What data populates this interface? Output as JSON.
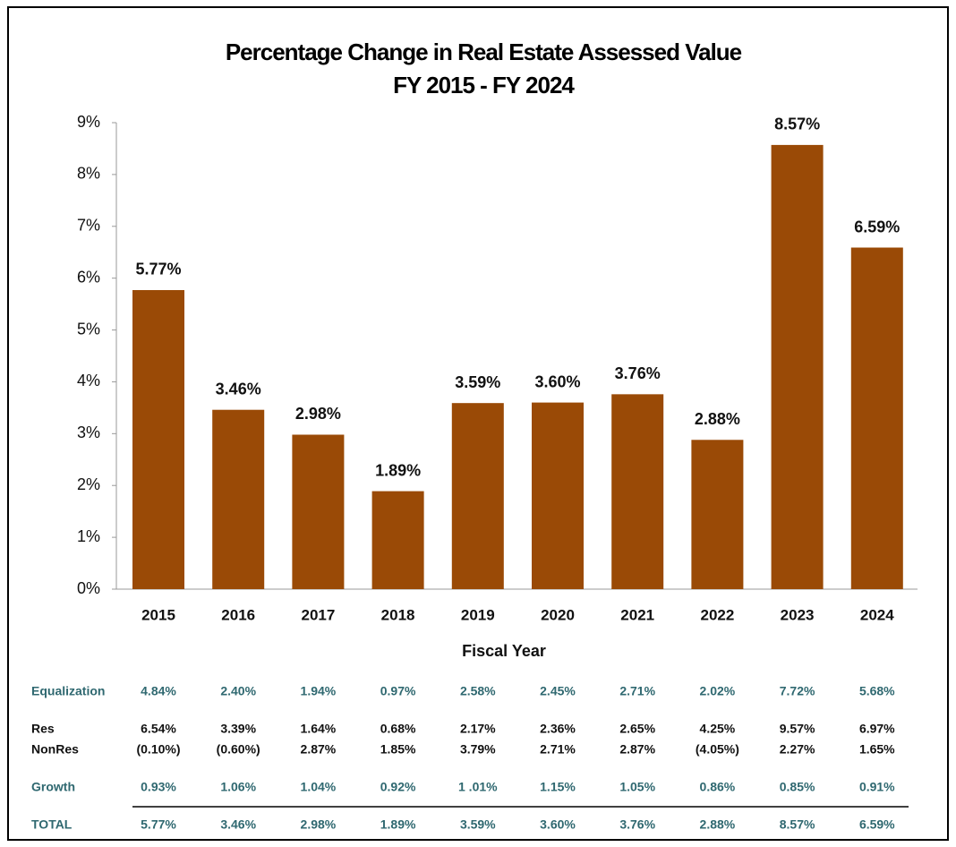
{
  "chart_data": {
    "type": "bar",
    "title": "Percentage Change in Real Estate Assessed Value",
    "subtitle": "FY 2015 - FY 2024",
    "x_label": "Fiscal Year",
    "categories": [
      "2015",
      "2016",
      "2017",
      "2018",
      "2019",
      "2020",
      "2021",
      "2022",
      "2023",
      "2024"
    ],
    "values": [
      5.77,
      3.46,
      2.98,
      1.89,
      3.59,
      3.6,
      3.76,
      2.88,
      8.57,
      6.59
    ],
    "value_labels": [
      "5.77%",
      "3.46%",
      "2.98%",
      "1.89%",
      "3.59%",
      "3.60%",
      "3.76%",
      "2.88%",
      "8.57%",
      "6.59%"
    ],
    "color": "#9a4a06",
    "ylim": [
      0,
      9
    ],
    "yticks": [
      {
        "value": 0,
        "label": "0%"
      },
      {
        "value": 1,
        "label": "1%"
      },
      {
        "value": 2,
        "label": "2%"
      },
      {
        "value": 3,
        "label": "3%"
      },
      {
        "value": 4,
        "label": "4%"
      },
      {
        "value": 5,
        "label": "5%"
      },
      {
        "value": 6,
        "label": "6%"
      },
      {
        "value": 7,
        "label": "7%"
      },
      {
        "value": 8,
        "label": "8%"
      },
      {
        "value": 9,
        "label": "9%"
      }
    ],
    "grid": false
  },
  "table": {
    "rows": [
      {
        "label": "Equalization",
        "color": "#2f6870",
        "cells": [
          "4.84%",
          "2.40%",
          "1.94%",
          "0.97%",
          "2.58%",
          "2.45%",
          "2.71%",
          "2.02%",
          "7.72%",
          "5.68%"
        ]
      },
      {
        "label": "Res",
        "color": "#111111",
        "cells": [
          "6.54%",
          "3.39%",
          "1.64%",
          "0.68%",
          "2.17%",
          "2.36%",
          "2.65%",
          "4.25%",
          "9.57%",
          "6.97%"
        ]
      },
      {
        "label": "NonRes",
        "color": "#111111",
        "cells": [
          "(0.10%)",
          "(0.60%)",
          "2.87%",
          "1.85%",
          "3.79%",
          "2.71%",
          "2.87%",
          "(4.05%)",
          "2.27%",
          "1.65%"
        ]
      },
      {
        "label": "Growth",
        "color": "#2f6870",
        "cells": [
          "0.93%",
          "1.06%",
          "1.04%",
          "0.92%",
          "1 .01%",
          "1.15%",
          "1.05%",
          "0.86%",
          "0.85%",
          "0.91%"
        ]
      },
      {
        "label": "TOTAL",
        "color": "#2f6870",
        "cells": [
          "5.77%",
          "3.46%",
          "2.98%",
          "1.89%",
          "3.59%",
          "3.60%",
          "3.76%",
          "2.88%",
          "8.57%",
          "6.59%"
        ]
      }
    ]
  }
}
